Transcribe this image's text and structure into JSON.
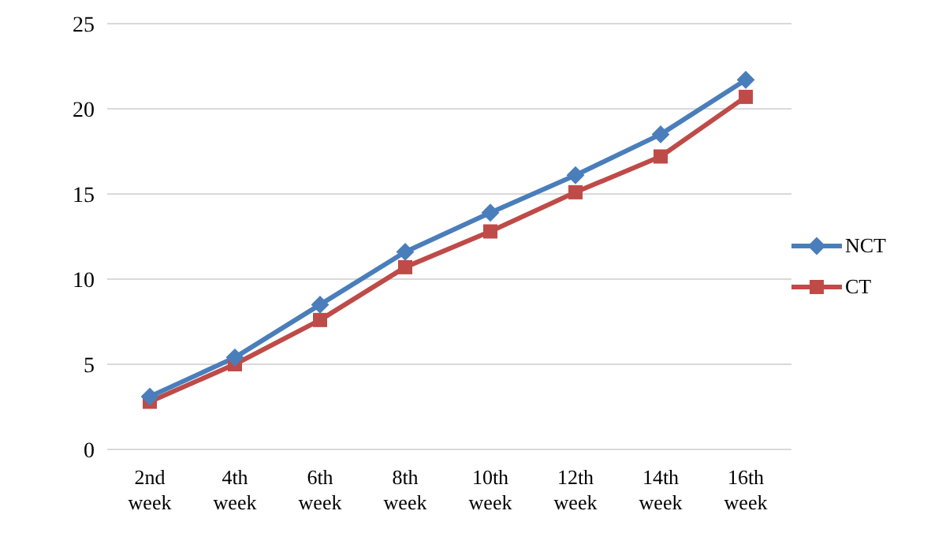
{
  "chart_data": {
    "type": "line",
    "categories": [
      "2nd week",
      "4th week",
      "6th week",
      "8th week",
      "10th week",
      "12th week",
      "14th week",
      "16th week"
    ],
    "series": [
      {
        "name": "NCT",
        "color": "#4a7ebb",
        "marker": "diamond",
        "values": [
          3.1,
          5.4,
          8.5,
          11.6,
          13.9,
          16.1,
          18.5,
          21.7
        ]
      },
      {
        "name": "CT",
        "color": "#be4b48",
        "marker": "square",
        "values": [
          2.8,
          5.0,
          7.6,
          10.7,
          12.8,
          15.1,
          17.2,
          20.7
        ]
      }
    ],
    "ylim": [
      0,
      25
    ],
    "yticks": [
      0,
      5,
      10,
      15,
      20,
      25
    ],
    "grid": "y",
    "legend": "right"
  }
}
